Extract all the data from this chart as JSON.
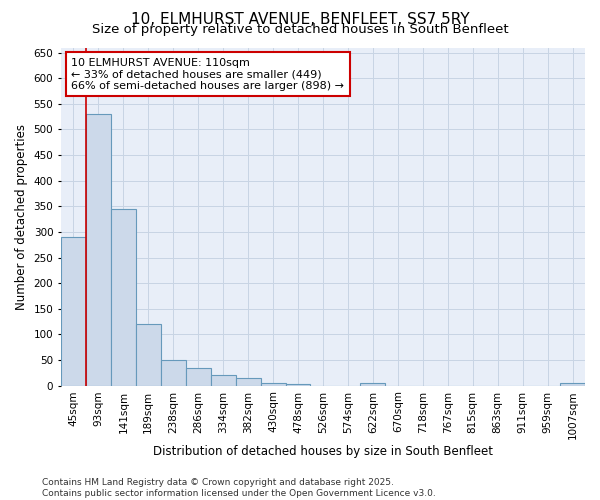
{
  "title_line1": "10, ELMHURST AVENUE, BENFLEET, SS7 5RY",
  "title_line2": "Size of property relative to detached houses in South Benfleet",
  "xlabel": "Distribution of detached houses by size in South Benfleet",
  "ylabel": "Number of detached properties",
  "categories": [
    "45sqm",
    "93sqm",
    "141sqm",
    "189sqm",
    "238sqm",
    "286sqm",
    "334sqm",
    "382sqm",
    "430sqm",
    "478sqm",
    "526sqm",
    "574sqm",
    "622sqm",
    "670sqm",
    "718sqm",
    "767sqm",
    "815sqm",
    "863sqm",
    "911sqm",
    "959sqm",
    "1007sqm"
  ],
  "values": [
    290,
    530,
    345,
    120,
    50,
    35,
    20,
    15,
    5,
    3,
    0,
    0,
    5,
    0,
    0,
    0,
    0,
    0,
    0,
    0,
    5
  ],
  "bar_color": "#ccd9ea",
  "bar_edge_color": "#6699bb",
  "red_line_index": 1,
  "annotation_text_lines": [
    "10 ELMHURST AVENUE: 110sqm",
    "← 33% of detached houses are smaller (449)",
    "66% of semi-detached houses are larger (898) →"
  ],
  "annotation_box_color": "white",
  "annotation_box_edge_color": "#cc0000",
  "ylim": [
    0,
    660
  ],
  "yticks": [
    0,
    50,
    100,
    150,
    200,
    250,
    300,
    350,
    400,
    450,
    500,
    550,
    600,
    650
  ],
  "grid_color": "#c8d4e4",
  "background_color": "#e8eef8",
  "footer_text": "Contains HM Land Registry data © Crown copyright and database right 2025.\nContains public sector information licensed under the Open Government Licence v3.0.",
  "title_fontsize": 11,
  "subtitle_fontsize": 9.5,
  "axis_label_fontsize": 8.5,
  "tick_fontsize": 7.5,
  "annotation_fontsize": 8,
  "footer_fontsize": 6.5
}
